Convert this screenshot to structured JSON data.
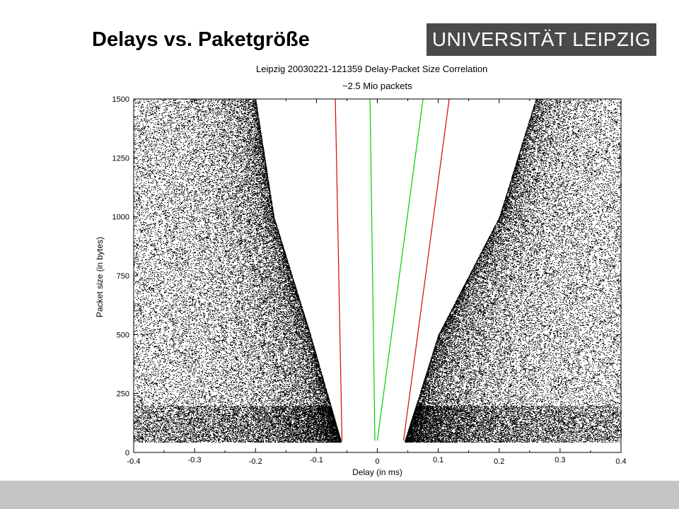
{
  "slide": {
    "title": "Delays vs. Paketgröße",
    "logo_text": "UNIVERSITÄT LEIPZIG"
  },
  "chart_data": {
    "type": "scatter",
    "title": "Leipzig 20030221-121359 Delay-Packet Size Correlation",
    "subtitle": "~2.5 Mio packets",
    "xlabel": "Delay (in ms)",
    "ylabel": "Packet  size (in bytes)",
    "xlim": [
      -0.4,
      0.4
    ],
    "ylim": [
      0,
      1500
    ],
    "xticks": [
      "-0.4",
      "-0.3",
      "-0.2",
      "-0.1",
      "0",
      "0.1",
      "0.2",
      "0.3",
      "0.4"
    ],
    "yticks": [
      "0",
      "250",
      "500",
      "750",
      "1000",
      "1250",
      "1500"
    ],
    "grid": false,
    "lines": [
      {
        "color": "#dd0000",
        "x": [
          -0.069,
          -0.058
        ],
        "y": [
          1500,
          50
        ]
      },
      {
        "color": "#00cc00",
        "x": [
          -0.012,
          -0.004
        ],
        "y": [
          1500,
          50
        ]
      },
      {
        "color": "#00cc00",
        "x": [
          0.075,
          0.0
        ],
        "y": [
          1500,
          50
        ]
      },
      {
        "color": "#dd0000",
        "x": [
          0.118,
          0.043
        ],
        "y": [
          1500,
          50
        ]
      }
    ],
    "point_clouds": [
      {
        "side": "negative",
        "y_range": [
          45,
          1500
        ],
        "inner_edge": [
          [
            50,
            -0.06
          ],
          [
            500,
            -0.11
          ],
          [
            1000,
            -0.17
          ],
          [
            1500,
            -0.2
          ]
        ],
        "outer_edge": -0.4
      },
      {
        "side": "positive",
        "y_range": [
          45,
          1500
        ],
        "inner_edge": [
          [
            50,
            0.045
          ],
          [
            500,
            0.1
          ],
          [
            1000,
            0.2
          ],
          [
            1500,
            0.26
          ]
        ],
        "outer_edge": 0.4
      }
    ]
  }
}
